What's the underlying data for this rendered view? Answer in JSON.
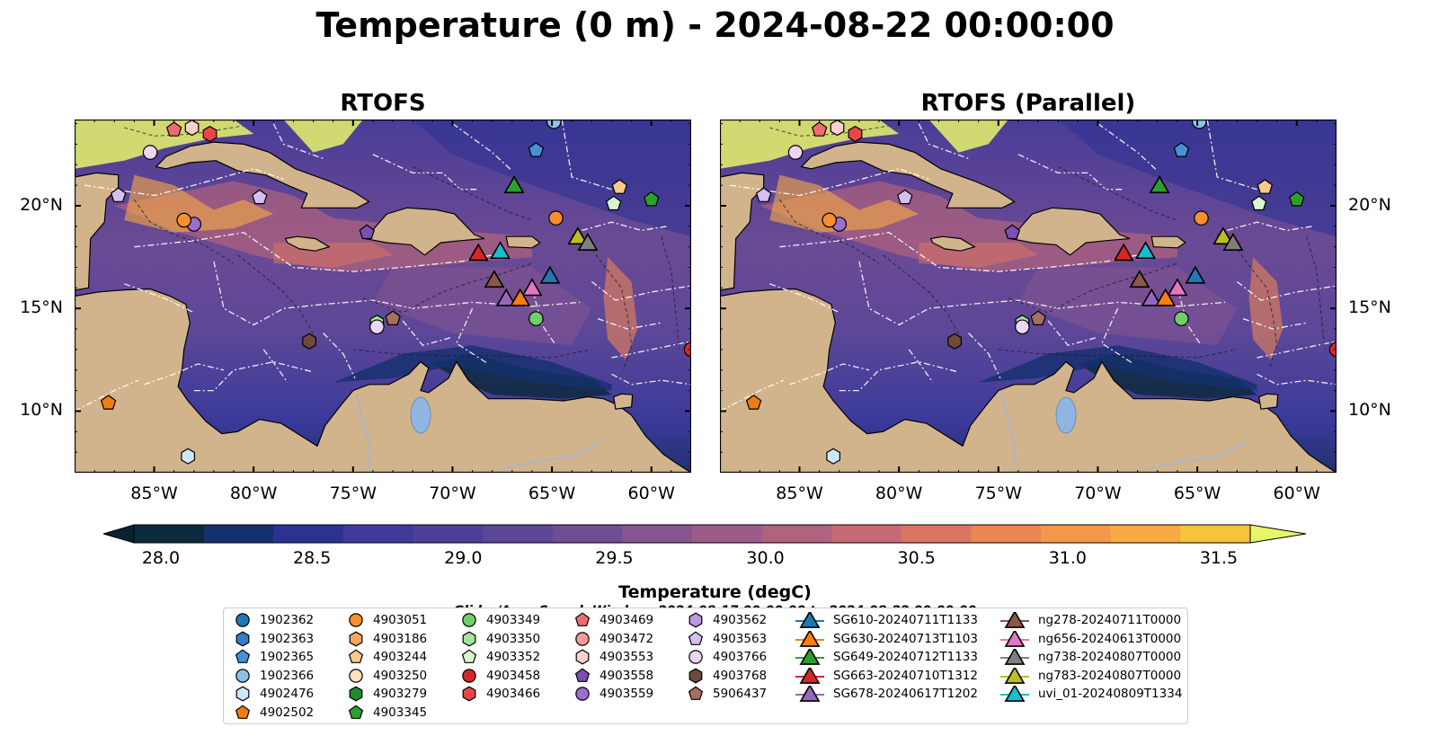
{
  "title": "Temperature (0 m) - 2024-08-22 00:00:00",
  "panels": [
    {
      "title": "RTOFS"
    },
    {
      "title": "RTOFS (Parallel)"
    }
  ],
  "map_extent": {
    "lon": [
      -89,
      -58
    ],
    "lat": [
      7,
      24.2
    ]
  },
  "lon_ticks": [
    {
      "value": -85,
      "label": "85°W"
    },
    {
      "value": -80,
      "label": "80°W"
    },
    {
      "value": -75,
      "label": "75°W"
    },
    {
      "value": -70,
      "label": "70°W"
    },
    {
      "value": -65,
      "label": "65°W"
    },
    {
      "value": -60,
      "label": "60°W"
    }
  ],
  "lat_ticks": [
    {
      "value": 20,
      "label": "20°N"
    },
    {
      "value": 15,
      "label": "15°N"
    },
    {
      "value": 10,
      "label": "10°N"
    }
  ],
  "colorbar": {
    "label": "Temperature (degC)",
    "min": 28.0,
    "max": 31.5,
    "ticks": [
      "28.0",
      "28.5",
      "29.0",
      "29.5",
      "30.0",
      "30.5",
      "31.0",
      "31.5"
    ],
    "colors": [
      "#0d2a3d",
      "#15306e",
      "#2b3291",
      "#3f3a9a",
      "#4d3f99",
      "#5c4696",
      "#714d93",
      "#865590",
      "#9b5c8a",
      "#b0627f",
      "#c66a74",
      "#db7562",
      "#ec8553",
      "#f5974a",
      "#f8ab42",
      "#f4c43b"
    ],
    "under_color": "#0a2330",
    "over_color": "#e8f56a"
  },
  "search_window": "Glider/Argo Search Window: 2024-08-17 00:00:00 to 2024-08-22 00:00:00",
  "legend": {
    "columns": [
      [
        {
          "label": "1902362",
          "marker": "circle",
          "color": "#1f77b4"
        },
        {
          "label": "1902363",
          "marker": "hexagon",
          "color": "#3a7bc8"
        },
        {
          "label": "1902365",
          "marker": "pentagon",
          "color": "#4a90d9"
        },
        {
          "label": "1902366",
          "marker": "circle",
          "color": "#8ec0ea"
        },
        {
          "label": "4902476",
          "marker": "hexagon",
          "color": "#cfe6f8"
        },
        {
          "label": "4902502",
          "marker": "pentagon",
          "color": "#f07d10"
        }
      ],
      [
        {
          "label": "4903051",
          "marker": "circle",
          "color": "#f58f30"
        },
        {
          "label": "4903186",
          "marker": "hexagon",
          "color": "#f8a65a"
        },
        {
          "label": "4903244",
          "marker": "pentagon",
          "color": "#fbc98e"
        },
        {
          "label": "4903250",
          "marker": "circle",
          "color": "#fde0bc"
        },
        {
          "label": "4903279",
          "marker": "hexagon",
          "color": "#1e8a2a"
        },
        {
          "label": "4903345",
          "marker": "pentagon",
          "color": "#2ca02c"
        }
      ],
      [
        {
          "label": "4903349",
          "marker": "circle",
          "color": "#6fcf6a"
        },
        {
          "label": "4903350",
          "marker": "hexagon",
          "color": "#a6e39e"
        },
        {
          "label": "4903352",
          "marker": "pentagon",
          "color": "#d8f5cf"
        },
        {
          "label": "4903458",
          "marker": "circle",
          "color": "#d62728"
        },
        {
          "label": "4903466",
          "marker": "hexagon",
          "color": "#e8464a"
        }
      ],
      [
        {
          "label": "4903469",
          "marker": "pentagon",
          "color": "#f06a72"
        },
        {
          "label": "4903472",
          "marker": "circle",
          "color": "#f49b9b"
        },
        {
          "label": "4903553",
          "marker": "hexagon",
          "color": "#fbd0cf"
        },
        {
          "label": "4903558",
          "marker": "pentagon",
          "color": "#7b4fb5"
        },
        {
          "label": "4903559",
          "marker": "circle",
          "color": "#9a6fd0"
        }
      ],
      [
        {
          "label": "4903562",
          "marker": "hexagon",
          "color": "#b89ae0"
        },
        {
          "label": "4903563",
          "marker": "pentagon",
          "color": "#d5bff0"
        },
        {
          "label": "4903766",
          "marker": "circle",
          "color": "#edd5f7"
        },
        {
          "label": "4903768",
          "marker": "hexagon",
          "color": "#6e4a3a"
        },
        {
          "label": "5906437",
          "marker": "pentagon",
          "color": "#a4705f"
        }
      ],
      [
        {
          "label": "SG610-20240711T1133",
          "marker": "triangle",
          "color": "#1f77b4"
        },
        {
          "label": "SG630-20240713T1103",
          "marker": "triangle",
          "color": "#ff7f0e"
        },
        {
          "label": "SG649-20240712T1133",
          "marker": "triangle",
          "color": "#2ca02c"
        },
        {
          "label": "SG663-20240710T1312",
          "marker": "triangle",
          "color": "#d62728"
        },
        {
          "label": "SG678-20240617T1202",
          "marker": "triangle",
          "color": "#9467bd"
        }
      ],
      [
        {
          "label": "ng278-20240711T0000",
          "marker": "triangle",
          "color": "#8c564b"
        },
        {
          "label": "ng656-20240613T0000",
          "marker": "triangle",
          "color": "#e377c2"
        },
        {
          "label": "ng738-20240807T0000",
          "marker": "triangle",
          "color": "#7f7f7f"
        },
        {
          "label": "ng783-20240807T0000",
          "marker": "triangle",
          "color": "#bcbd22"
        },
        {
          "label": "uvi_01-20240809T1334",
          "marker": "triangle",
          "color": "#17becf"
        }
      ]
    ]
  },
  "map_points": [
    {
      "label": "4903469",
      "lon": -84.0,
      "lat": 23.7
    },
    {
      "label": "4903553",
      "lon": -83.1,
      "lat": 23.8
    },
    {
      "label": "4903466",
      "lon": -82.2,
      "lat": 23.5
    },
    {
      "label": "4903766",
      "lon": -85.2,
      "lat": 22.6
    },
    {
      "label": "4903563",
      "lon": -86.8,
      "lat": 20.5
    },
    {
      "label": "4903563",
      "lon": -79.7,
      "lat": 20.4
    },
    {
      "label": "4903559",
      "lon": -83.0,
      "lat": 19.1
    },
    {
      "label": "4903051",
      "lon": -83.5,
      "lat": 19.3
    },
    {
      "label": "4903558",
      "lon": -74.3,
      "lat": 18.7
    },
    {
      "label": "1902365",
      "lon": -65.8,
      "lat": 22.7
    },
    {
      "label": "4903244",
      "lon": -61.6,
      "lat": 20.9
    },
    {
      "label": "4903352",
      "lon": -61.9,
      "lat": 20.1
    },
    {
      "label": "4903345",
      "lon": -60.0,
      "lat": 20.3
    },
    {
      "label": "4903051",
      "lon": -64.8,
      "lat": 19.4
    },
    {
      "label": "4903350",
      "lon": -73.8,
      "lat": 14.3
    },
    {
      "label": "4903766",
      "lon": -73.8,
      "lat": 14.1
    },
    {
      "label": "5906437",
      "lon": -73.0,
      "lat": 14.5
    },
    {
      "label": "4903768",
      "lon": -77.2,
      "lat": 13.4
    },
    {
      "label": "4903349",
      "lon": -65.8,
      "lat": 14.5
    },
    {
      "label": "4903458",
      "lon": -58.0,
      "lat": 13.0
    },
    {
      "label": "4902502",
      "lon": -87.3,
      "lat": 10.4
    },
    {
      "label": "4902476",
      "lon": -83.3,
      "lat": 7.8
    },
    {
      "label": "1902366",
      "lon": -64.9,
      "lat": 24.1
    }
  ],
  "map_gliders": [
    {
      "label": "SG649-20240712T1133",
      "lon": -66.9,
      "lat": 21.0
    },
    {
      "label": "SG663-20240710T1312",
      "lon": -68.7,
      "lat": 17.7
    },
    {
      "label": "uvi_01-20240809T1334",
      "lon": -67.6,
      "lat": 17.8
    },
    {
      "label": "ng783-20240807T0000",
      "lon": -63.7,
      "lat": 18.5
    },
    {
      "label": "ng738-20240807T0000",
      "lon": -63.2,
      "lat": 18.2
    },
    {
      "label": "ng278-20240711T0000",
      "lon": -67.9,
      "lat": 16.4
    },
    {
      "label": "SG610-20240711T1133",
      "lon": -65.1,
      "lat": 16.6
    },
    {
      "label": "ng656-20240613T0000",
      "lon": -66.0,
      "lat": 16.0
    },
    {
      "label": "SG678-20240617T1202",
      "lon": -67.3,
      "lat": 15.5
    },
    {
      "label": "SG630-20240713T1103",
      "lon": -66.6,
      "lat": 15.5
    }
  ]
}
